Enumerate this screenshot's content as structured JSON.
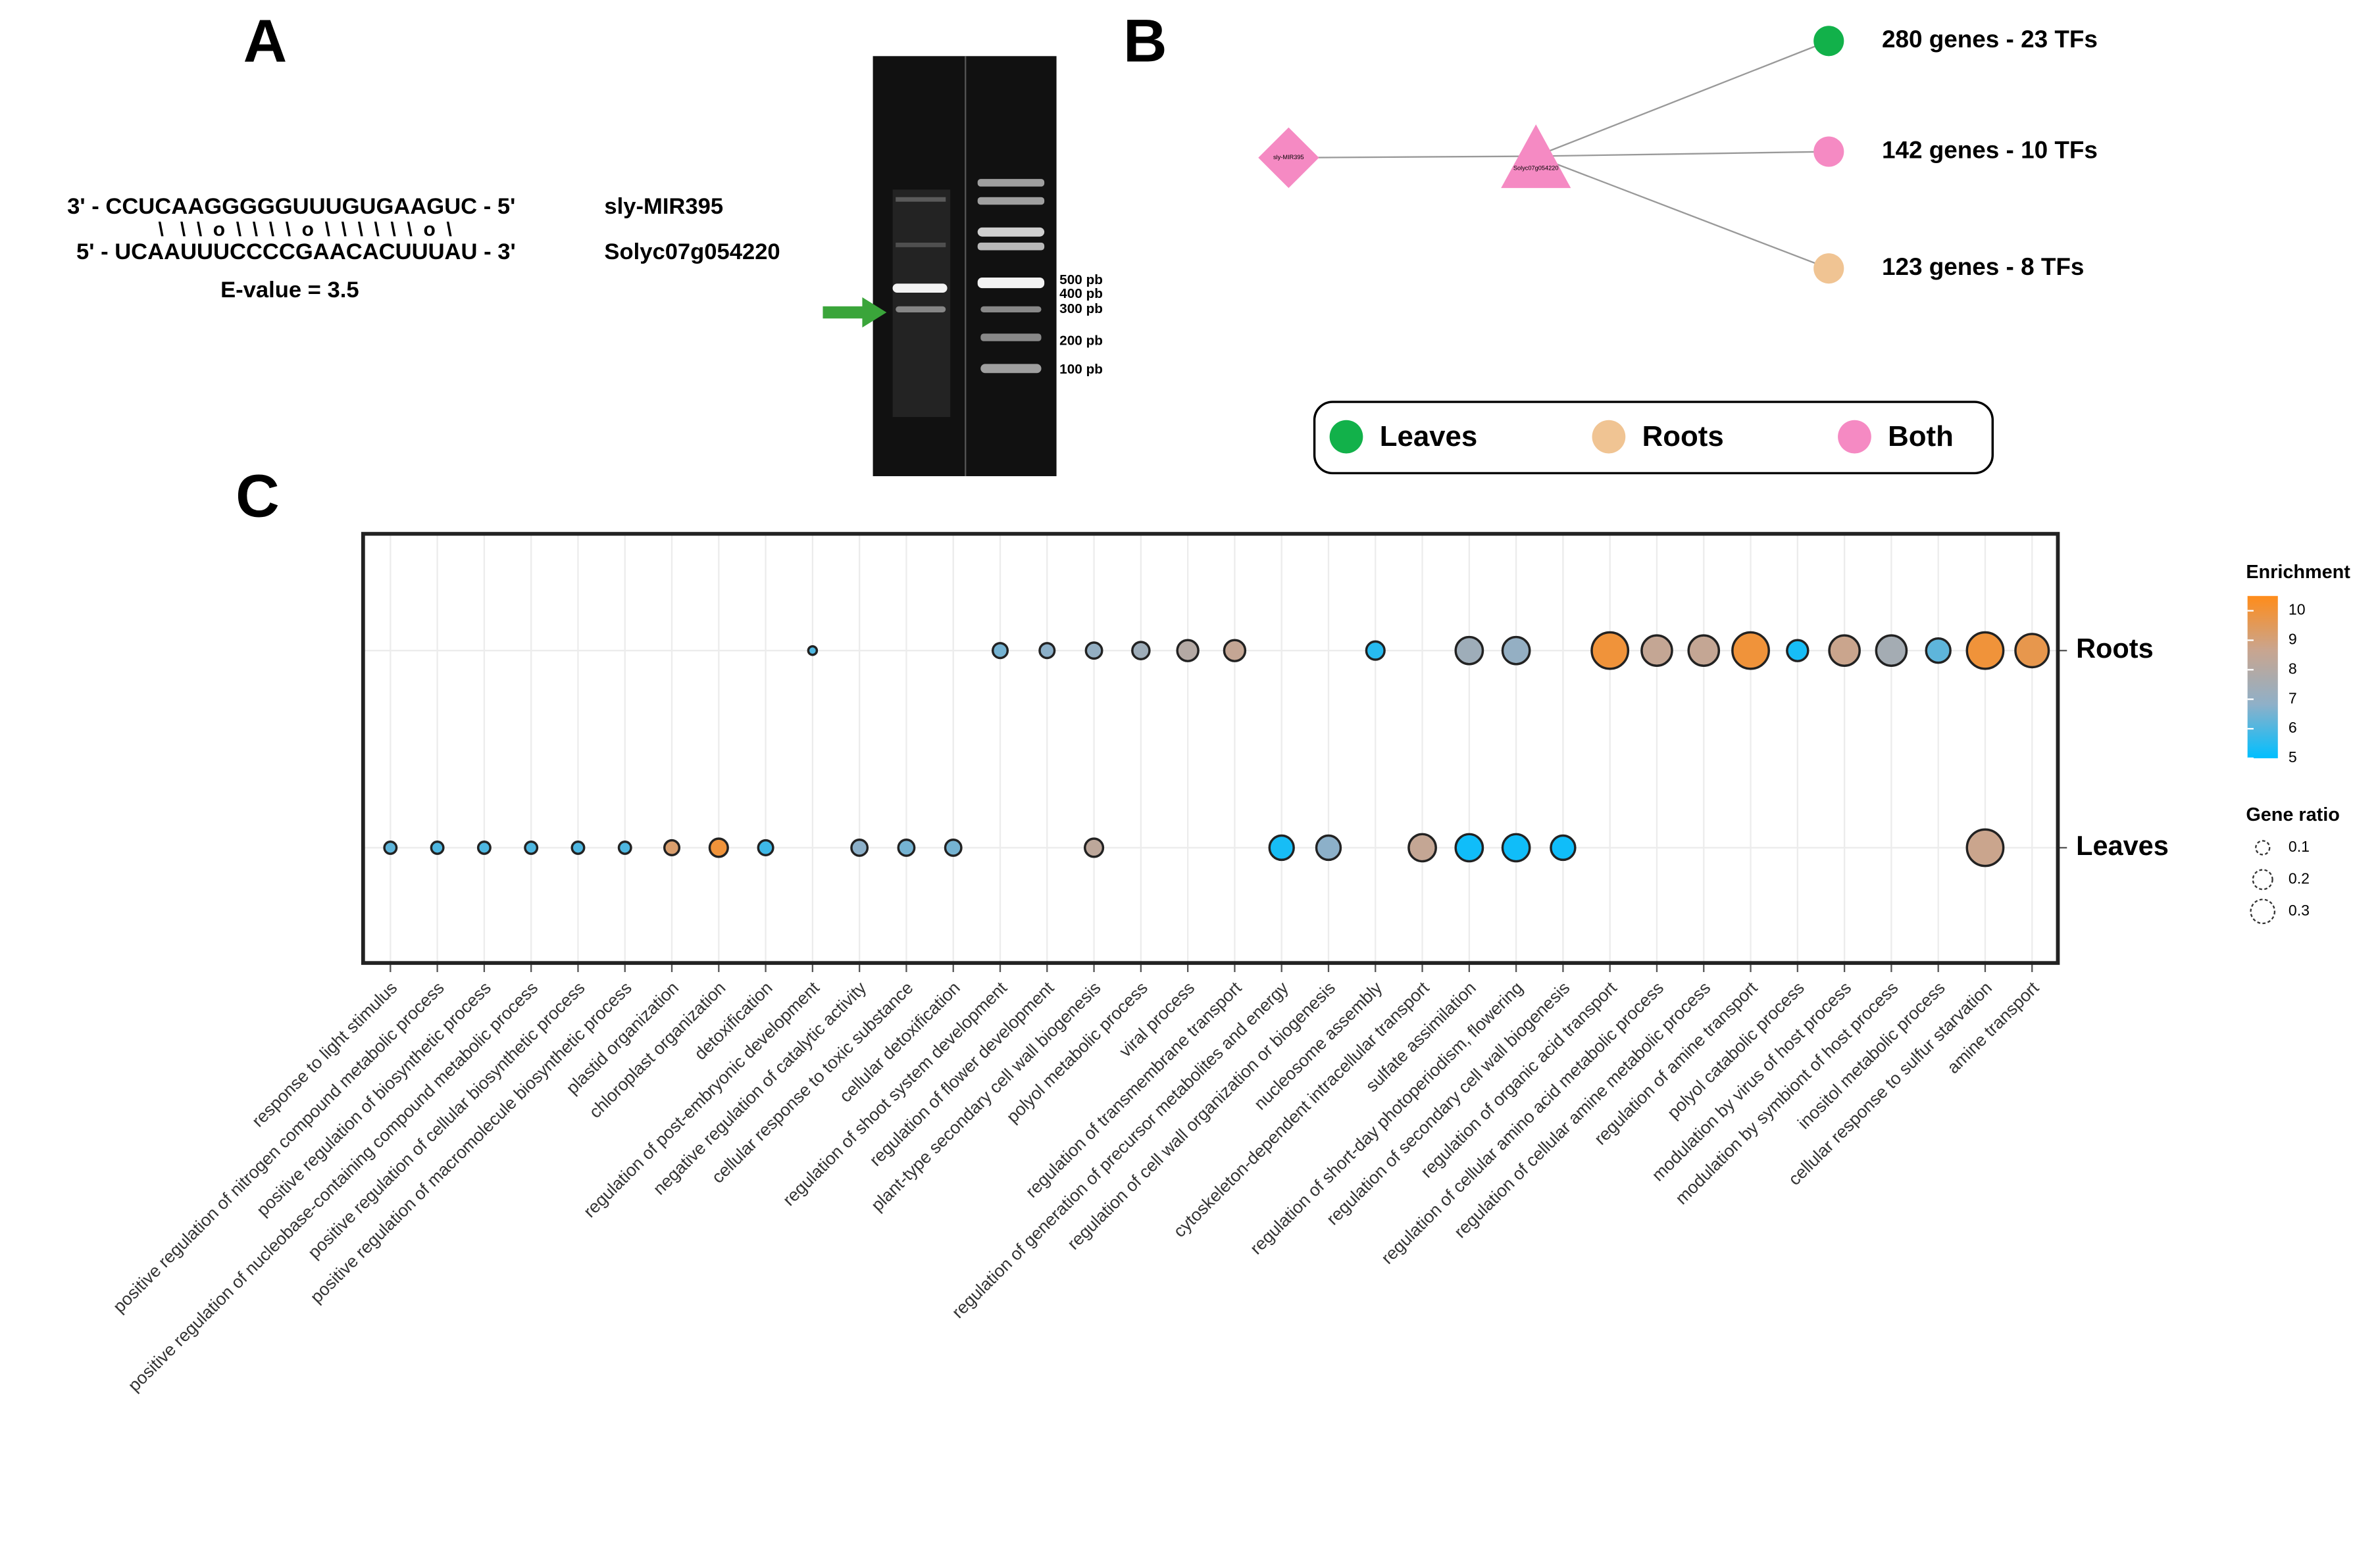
{
  "panel_a": {
    "label": "A",
    "strand_1": "3' - CCUCAAGGGGGUUUGUGAAGUC - 5'",
    "pairing": "\\   \\  \\  o  \\  \\  \\  \\  o  \\  \\  \\  \\  \\  \\  o  \\",
    "strand_2": "5' - UCAAUUUCCCCGAACACUUUAU - 3'",
    "name_1": "sly-MIR395",
    "name_2": "Solyc07g054220",
    "evalue": "E-value = 3.5",
    "ladder": [
      "500 pb",
      "400 pb",
      "300 pb",
      "200 pb",
      "100 pb"
    ]
  },
  "panel_b": {
    "label": "B",
    "mirna": "sly-MIR395",
    "target": "Solyc07g054220",
    "groups": [
      {
        "label": "280 genes - 23 TFs",
        "color": "#12b14a"
      },
      {
        "label": "142 genes - 10 TFs",
        "color": "#f58ac3"
      },
      {
        "label": "123 genes - 8 TFs",
        "color": "#f0c493"
      }
    ],
    "legend": [
      {
        "label": "Leaves",
        "color": "#12b14a"
      },
      {
        "label": "Roots",
        "color": "#f0c493"
      },
      {
        "label": "Both",
        "color": "#f58ac3"
      }
    ]
  },
  "chart_data": {
    "type": "dotplot",
    "label": "C",
    "categories": [
      "response to light stimulus",
      "positive regulation of nitrogen compound metabolic process",
      "positive regulation of biosynthetic process",
      "positive regulation of nucleobase-containing compound metabolic process",
      "positive regulation of cellular biosynthetic process",
      "positive regulation of macromolecule biosynthetic process",
      "plastid organization",
      "chloroplast organization",
      "detoxification",
      "regulation of post-embryonic development",
      "negative regulation of catalytic activity",
      "cellular response to toxic substance",
      "cellular detoxification",
      "regulation of shoot system development",
      "regulation of flower development",
      "plant-type secondary cell wall biogenesis",
      "polyol metabolic process",
      "viral process",
      "regulation of transmembrane transport",
      "regulation of generation of precursor metabolites and energy",
      "regulation of cell wall organization or biogenesis",
      "nucleosome assembly",
      "cytoskeleton-dependent intracellular transport",
      "sulfate assimilation",
      "regulation of short-day photoperiodism, flowering",
      "regulation of secondary cell wall biogenesis",
      "regulation of organic acid transport",
      "regulation of cellular amino acid metabolic process",
      "regulation of cellular amine metabolic process",
      "regulation of amine transport",
      "polyol catabolic process",
      "modulation by virus of host process",
      "modulation by symbiont of host process",
      "inositol metabolic process",
      "cellular response to sulfur starvation",
      "amine transport"
    ],
    "series": [
      {
        "name": "Roots",
        "enrichment": [
          null,
          null,
          null,
          null,
          null,
          null,
          null,
          null,
          null,
          6,
          null,
          null,
          null,
          6.5,
          6.8,
          7,
          7.3,
          8,
          8.5,
          null,
          null,
          5.5,
          null,
          7.3,
          7,
          null,
          10,
          8.5,
          8.5,
          10,
          5.3,
          8.7,
          7.5,
          6.2,
          10,
          9.7
        ],
        "gene_ratio": [
          null,
          null,
          null,
          null,
          null,
          null,
          null,
          null,
          null,
          0.02,
          null,
          null,
          null,
          0.06,
          0.06,
          0.07,
          0.08,
          0.12,
          0.12,
          null,
          null,
          0.09,
          null,
          0.2,
          0.2,
          null,
          0.36,
          0.25,
          0.25,
          0.36,
          0.12,
          0.25,
          0.25,
          0.16,
          0.36,
          0.3
        ]
      },
      {
        "name": "Leaves",
        "enrichment": [
          6.2,
          6,
          6,
          6,
          6,
          6,
          9.2,
          10,
          5.8,
          null,
          6.8,
          6.5,
          6.5,
          null,
          null,
          8.3,
          null,
          null,
          null,
          5.3,
          6.8,
          null,
          8.5,
          5.2,
          5.2,
          5.2,
          null,
          null,
          null,
          null,
          null,
          null,
          null,
          null,
          8.7,
          null
        ],
        "gene_ratio": [
          0.04,
          0.04,
          0.04,
          0.04,
          0.04,
          0.04,
          0.06,
          0.09,
          0.06,
          null,
          0.07,
          0.07,
          0.07,
          null,
          null,
          0.09,
          null,
          null,
          null,
          0.16,
          0.16,
          null,
          0.2,
          0.2,
          0.2,
          0.16,
          null,
          null,
          null,
          null,
          null,
          null,
          null,
          null,
          0.36,
          null
        ]
      }
    ],
    "color_title": "Enrichment",
    "zlim": [
      5,
      10.5
    ],
    "zticks": [
      5,
      6,
      7,
      8,
      9,
      10
    ],
    "colors": [
      "#00bfff",
      "#8fb0c8",
      "#c9a58f",
      "#ff8c1a"
    ],
    "size_title": "Gene ratio",
    "size_ticks": [
      0.1,
      0.2,
      0.3
    ],
    "grid": true
  }
}
